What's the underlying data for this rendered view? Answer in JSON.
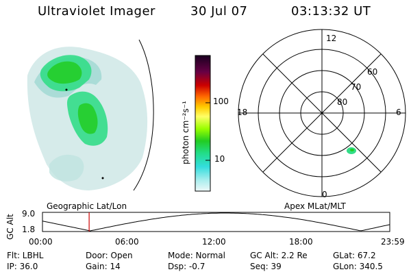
{
  "header": {
    "title": "Ultraviolet Imager",
    "date": "30 Jul 07",
    "time": "03:13:32 UT"
  },
  "colorbar": {
    "unit_label": "photon cm⁻²s⁻¹",
    "ticks": [
      "100",
      "10"
    ]
  },
  "polar_plot": {
    "mlt_labels": {
      "top": "12",
      "left": "18",
      "right": "6",
      "bottom": "0"
    },
    "lat_labels": [
      "60",
      "70",
      "80"
    ]
  },
  "timeline": {
    "y_axis_label": "GC Alt",
    "y_ticks": [
      "9.0",
      "1.8"
    ],
    "left_caption": "Geographic Lat/Lon",
    "right_caption": "Apex MLat/MLT",
    "x_ticks": [
      "00:00",
      "06:00",
      "12:00",
      "18:00",
      "23:59"
    ],
    "current_time_hours": 3.225
  },
  "footer": {
    "flt": "Flt: LBHL",
    "ip": "IP: 36.0",
    "door": "Door: Open",
    "gain": "Gain: 14",
    "mode": "Mode: Normal",
    "dsp": "Dsp:    -0.7",
    "gc_alt": "GC Alt: 2.2 Re",
    "seq": "Seq: 39",
    "glat": "GLat:  67.2",
    "glon": "GLon: 340.5"
  },
  "colors": {
    "bright": "#22cc22",
    "medium": "#33dd88",
    "faint": "#cfe8e6",
    "marker": "#cc0000"
  }
}
